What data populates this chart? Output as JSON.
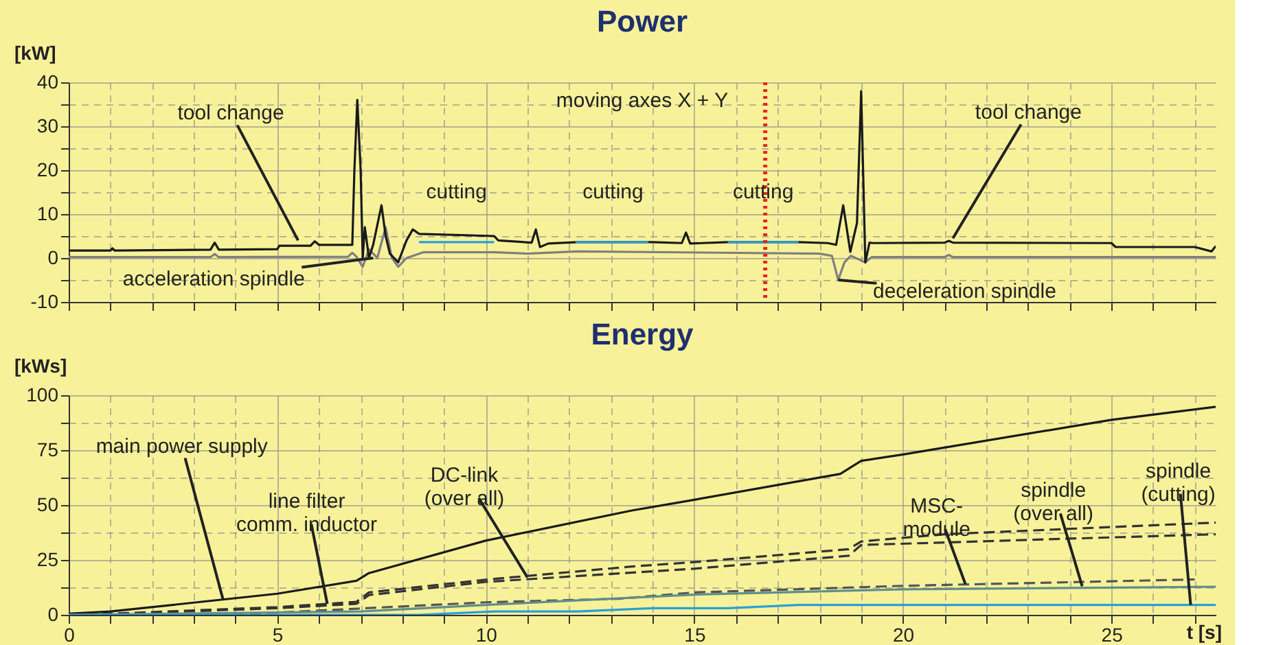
{
  "chart_data": [
    {
      "type": "line",
      "title": "Power",
      "ylabel": "[kW]",
      "xlim": [
        0,
        27.5
      ],
      "xticks": [
        0,
        {
          "value": 1,
          "label": null
        },
        {
          "value": 2,
          "label": null
        },
        {
          "value": 3,
          "label": null
        },
        {
          "value": 4,
          "label": null
        },
        5,
        {
          "value": 6,
          "label": null
        },
        {
          "value": 7,
          "label": null
        },
        {
          "value": 8,
          "label": null
        },
        {
          "value": 9,
          "label": null
        },
        10,
        {
          "value": 11,
          "label": null
        },
        {
          "value": 12,
          "label": null
        },
        {
          "value": 13,
          "label": null
        },
        {
          "value": 14,
          "label": null
        },
        15,
        {
          "value": 16,
          "label": null
        },
        {
          "value": 17,
          "label": null
        },
        {
          "value": 18,
          "label": null
        },
        {
          "value": 19,
          "label": null
        },
        20,
        {
          "value": 21,
          "label": null
        },
        {
          "value": 22,
          "label": null
        },
        {
          "value": 23,
          "label": null
        },
        {
          "value": 24,
          "label": null
        },
        25,
        {
          "value": 26,
          "label": null
        },
        {
          "value": 27,
          "label": null
        }
      ],
      "ylim": [
        -10,
        40
      ],
      "yticks": [
        -10,
        {
          "value": -5,
          "label": null
        },
        0,
        {
          "value": 5,
          "label": null
        },
        10,
        {
          "value": 15,
          "label": null
        },
        20,
        {
          "value": 25,
          "label": null
        },
        30,
        {
          "value": 35,
          "label": null
        },
        40
      ],
      "tick_labels": "y",
      "grid": true,
      "series": [
        {
          "color": "#7f7f7f",
          "line_style": "solid",
          "x": [
            0,
            3.4,
            3.5,
            3.6,
            6.7,
            6.8,
            6.9,
            7.05,
            7.2,
            7.4,
            7.6,
            7.75,
            7.9,
            8.1,
            8.5,
            10.2,
            11.0,
            12.2,
            18.0,
            18.3,
            18.45,
            18.6,
            18.75,
            19.1,
            19.25,
            19.4,
            21.0,
            21.1,
            21.2,
            27.5
          ],
          "values": [
            0.2,
            0.2,
            0.9,
            0.2,
            0.3,
            1.2,
            0.3,
            -2,
            2,
            0,
            7,
            0,
            -2,
            0,
            1.3,
            1.3,
            1.0,
            1.5,
            1.0,
            0.5,
            -5,
            -1,
            0.5,
            -1,
            0.2,
            0.2,
            0.2,
            0.7,
            0.2,
            0.2
          ]
        },
        {
          "color": "#1a1a1a",
          "line_style": "solid",
          "x": [
            0,
            1.0,
            1.05,
            1.1,
            3.4,
            3.5,
            3.6,
            5.0,
            5.05,
            5.8,
            5.9,
            6.0,
            6.8,
            6.85,
            6.92,
            7.0,
            7.05,
            7.1,
            7.2,
            7.3,
            7.5,
            7.6,
            7.7,
            7.9,
            8.1,
            8.25,
            8.4,
            10.2,
            10.3,
            11.1,
            11.2,
            11.3,
            11.5,
            12.2,
            14.0,
            14.7,
            14.8,
            14.9,
            15.8,
            17.5,
            18.2,
            18.4,
            18.57,
            18.74,
            18.9,
            19.0,
            19.1,
            19.2,
            19.3,
            21.0,
            21.1,
            21.2,
            25.0,
            25.1,
            27.0,
            27.4,
            27.5
          ],
          "values": [
            1.7,
            1.7,
            2.2,
            1.7,
            1.9,
            3.5,
            1.9,
            2.0,
            2.8,
            2.8,
            3.8,
            3.0,
            3.0,
            20,
            36,
            20,
            0,
            7,
            0,
            3,
            12,
            5,
            1,
            -1,
            4,
            6.5,
            5.5,
            5.0,
            4.0,
            3.5,
            6.5,
            2.5,
            3.3,
            3.6,
            3.6,
            3.4,
            5.8,
            3.3,
            3.6,
            3.6,
            3.4,
            3.0,
            12,
            1.4,
            8,
            38,
            -1,
            3.5,
            3.4,
            3.5,
            3.9,
            3.5,
            3.4,
            2.5,
            2.5,
            1.5,
            2.7
          ]
        },
        {
          "color": "#2a9fd8",
          "line_style": "solid",
          "x": [
            8.4,
            10.2,
            11.0,
            12.15,
            13.9,
            15.0,
            15.8,
            17.5
          ],
          "values": [
            3.6,
            3.6,
            null,
            3.6,
            3.6,
            null,
            3.6,
            3.6
          ]
        }
      ],
      "ref_lines": [
        {
          "axis": "x",
          "value": 16.7,
          "color": "#e8231f",
          "line_style": "dotted"
        }
      ],
      "annotations": [
        {
          "text": "tool change",
          "x": 5.5,
          "y": 4
        },
        "moving axes X + Y",
        {
          "text": "acceleration spindle",
          "x": 7.3,
          "y": 0
        },
        {
          "text": "deceleration spindle",
          "x": 18.45,
          "y": -5
        },
        {
          "text": "tool change",
          "x": 21.2,
          "y": 4.5
        },
        {
          "text": "cutting",
          "x": 9.3,
          "y": 3.6
        },
        {
          "text": "cutting",
          "x": 13.05,
          "y": 3.6
        },
        {
          "text": "cutting",
          "x": 16.65,
          "y": 3.6
        }
      ]
    },
    {
      "type": "line",
      "title": "Energy",
      "ylabel": "[kWs]",
      "xlabel": "t [s]",
      "xlim": [
        0,
        27.5
      ],
      "xticks": [
        0,
        {
          "value": 1,
          "label": null
        },
        {
          "value": 2,
          "label": null
        },
        {
          "value": 3,
          "label": null
        },
        {
          "value": 4,
          "label": null
        },
        5,
        {
          "value": 6,
          "label": null
        },
        {
          "value": 7,
          "label": null
        },
        {
          "value": 8,
          "label": null
        },
        {
          "value": 9,
          "label": null
        },
        10,
        {
          "value": 11,
          "label": null
        },
        {
          "value": 12,
          "label": null
        },
        {
          "value": 13,
          "label": null
        },
        {
          "value": 14,
          "label": null
        },
        15,
        {
          "value": 16,
          "label": null
        },
        {
          "value": 17,
          "label": null
        },
        {
          "value": 18,
          "label": null
        },
        {
          "value": 19,
          "label": null
        },
        20,
        {
          "value": 21,
          "label": null
        },
        {
          "value": 22,
          "label": null
        },
        {
          "value": 23,
          "label": null
        },
        {
          "value": 24,
          "label": null
        },
        25,
        {
          "value": 26,
          "label": null
        },
        {
          "value": 27,
          "label": null
        }
      ],
      "ylim": [
        0,
        100
      ],
      "yticks": [
        0,
        {
          "value": 12.5,
          "label": null
        },
        25,
        {
          "value": 37.5,
          "label": null
        },
        50,
        {
          "value": 62.5,
          "label": null
        },
        75,
        {
          "value": 87.5,
          "label": null
        },
        100
      ],
      "grid": true,
      "series": [
        {
          "color": "#1a1a1a",
          "line_style": "solid",
          "x": [
            0,
            1,
            5,
            6.9,
            7.2,
            10,
            13.5,
            15,
            18.5,
            19.0,
            20,
            25,
            27.5
          ],
          "values": [
            0.5,
            1.5,
            9.6,
            15.5,
            19,
            33.8,
            47.5,
            52.4,
            64.2,
            70.1,
            73,
            88.8,
            94.7
          ]
        },
        {
          "color": "#333333",
          "line_style": "dashed",
          "x": [
            0,
            1,
            5,
            6.9,
            7.2,
            10,
            13.5,
            15,
            18.7,
            19,
            21,
            27.5
          ],
          "values": [
            0,
            0.5,
            3.5,
            5.9,
            10.2,
            16,
            22,
            24,
            29.9,
            33.4,
            36.7,
            42
          ]
        },
        {
          "color": "#333333",
          "line_style": "dashed",
          "x": [
            0,
            1,
            5,
            6.9,
            7.2,
            10,
            15,
            18.7,
            19,
            27.5
          ],
          "values": [
            0,
            0.3,
            3,
            5,
            9,
            15,
            21,
            26.9,
            31.8,
            36.7
          ]
        },
        {
          "color": "#555555",
          "line_style": "dashed",
          "x": [
            0,
            3,
            5,
            10,
            13.2,
            15,
            20,
            27
          ],
          "values": [
            0,
            0,
            1,
            5.7,
            7.3,
            10.2,
            13.2,
            16.1
          ]
        },
        {
          "color": "#5f8f8a",
          "line_style": "solid",
          "x": [
            0,
            7,
            10,
            15,
            20,
            27.5
          ],
          "values": [
            0,
            1.5,
            4.5,
            9.2,
            11.6,
            12.8
          ]
        },
        {
          "color": "#2a9fd8",
          "line_style": "solid",
          "x": [
            0,
            8.4,
            10.2,
            12.2,
            14,
            15.8,
            17.5,
            27.5
          ],
          "values": [
            0,
            0,
            1.5,
            1.5,
            3,
            3,
            4.5,
            4.5
          ]
        }
      ],
      "annotations": [
        {
          "text": "main power supply",
          "x": 3.7,
          "y": 7
        },
        {
          "text": "line filter\ncomm. inductor",
          "x": 6.2,
          "y": 5
        },
        {
          "text": "DC-link\n(over all)",
          "x": 11,
          "y": 17
        },
        {
          "text": "MSC-\nmodule",
          "x": 21.5,
          "y": 14
        },
        {
          "text": "spindle\n(over all)",
          "x": 24.3,
          "y": 13
        },
        {
          "text": "spindle\n(cutting)",
          "x": 26.9,
          "y": 4.5
        }
      ]
    }
  ]
}
